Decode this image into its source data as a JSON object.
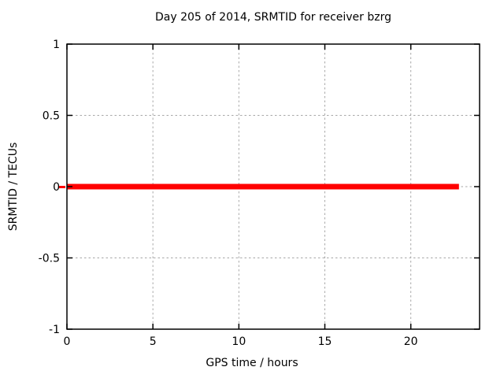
{
  "chart_data": {
    "type": "line",
    "title": "Day 205 of 2014, SRMTID for receiver bzrg",
    "xlabel": "GPS time / hours",
    "ylabel": "SRMTID / TECUs",
    "xlim": [
      0,
      24
    ],
    "ylim": [
      -1,
      1
    ],
    "xticks": [
      0,
      5,
      10,
      15,
      20
    ],
    "yticks": [
      -1,
      -0.5,
      0,
      0.5,
      1
    ],
    "grid": true,
    "legend": "none",
    "colors": {
      "background": "#ffffff",
      "border": "#000000",
      "grid": "#a8a8a8",
      "text": "#000000",
      "series": "#ff0000"
    },
    "series": [
      {
        "name": "SRMTID",
        "color": "#ff0000",
        "linewidth": 7,
        "x": [
          0,
          22.8
        ],
        "y": [
          0,
          0
        ]
      }
    ],
    "left_edge_marker": {
      "y": 0,
      "color": "#ff0000"
    }
  }
}
